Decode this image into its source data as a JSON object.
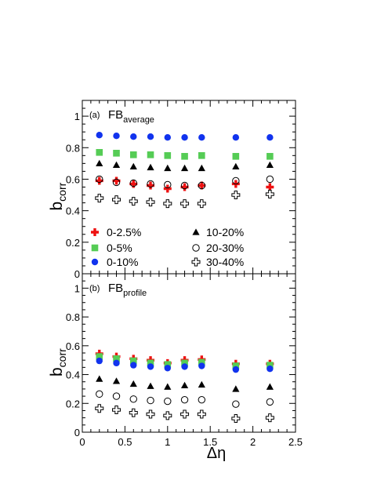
{
  "chart_data": [
    {
      "type": "scatter",
      "panel_label": "(a)",
      "title_main": "FB",
      "title_sub": "average",
      "ylabel_main": "b",
      "ylabel_sub": "corr",
      "xlim": [
        0,
        2.5
      ],
      "ylim": [
        0,
        1.1
      ],
      "yticks": [
        "0",
        "0.2",
        "0.4",
        "0.6",
        "0.8",
        "1"
      ],
      "grid": false,
      "legend_position": "bottom",
      "series": [
        {
          "name": "0-2.5%",
          "marker": "cross-filled",
          "color": "#ee1111",
          "x": [
            0.2,
            0.4,
            0.6,
            0.8,
            1.0,
            1.2,
            1.4,
            1.8,
            2.2
          ],
          "y": [
            0.59,
            0.59,
            0.57,
            0.56,
            0.54,
            0.55,
            0.56,
            0.57,
            0.55
          ]
        },
        {
          "name": "0-5%",
          "marker": "square",
          "color": "#55cc55",
          "x": [
            0.2,
            0.4,
            0.6,
            0.8,
            1.0,
            1.2,
            1.4,
            1.8,
            2.2
          ],
          "y": [
            0.77,
            0.765,
            0.755,
            0.755,
            0.75,
            0.745,
            0.75,
            0.745,
            0.745
          ]
        },
        {
          "name": "0-10%",
          "marker": "circle",
          "color": "#1133ee",
          "x": [
            0.2,
            0.4,
            0.6,
            0.8,
            1.0,
            1.2,
            1.4,
            1.8,
            2.2
          ],
          "y": [
            0.88,
            0.875,
            0.87,
            0.87,
            0.865,
            0.865,
            0.865,
            0.865,
            0.865
          ]
        },
        {
          "name": "10-20%",
          "marker": "triangle",
          "color": "#000000",
          "x": [
            0.2,
            0.4,
            0.6,
            0.8,
            1.0,
            1.2,
            1.4,
            1.8,
            2.2
          ],
          "y": [
            0.7,
            0.69,
            0.68,
            0.675,
            0.67,
            0.67,
            0.67,
            0.68,
            0.69
          ]
        },
        {
          "name": "20-30%",
          "marker": "circle-open",
          "color": "#000000",
          "x": [
            0.2,
            0.4,
            0.6,
            0.8,
            1.0,
            1.2,
            1.4,
            1.8,
            2.2
          ],
          "y": [
            0.6,
            0.58,
            0.575,
            0.57,
            0.565,
            0.56,
            0.56,
            0.59,
            0.6
          ]
        },
        {
          "name": "30-40%",
          "marker": "cross-open",
          "color": "#000000",
          "x": [
            0.2,
            0.4,
            0.6,
            0.8,
            1.0,
            1.2,
            1.4,
            1.8,
            2.2
          ],
          "y": [
            0.48,
            0.47,
            0.46,
            0.455,
            0.445,
            0.445,
            0.445,
            0.5,
            0.505
          ]
        }
      ]
    },
    {
      "type": "scatter",
      "panel_label": "(b)",
      "title_main": "FB",
      "title_sub": "profile",
      "ylabel_main": "b",
      "ylabel_sub": "corr",
      "xlabel": "Δη",
      "xlim": [
        0,
        2.5
      ],
      "xticks": [
        "0",
        "0.5",
        "1",
        "1.5",
        "2",
        "2.5"
      ],
      "ylim": [
        0,
        1.1
      ],
      "yticks": [
        "0",
        "0.2",
        "0.4",
        "0.6",
        "0.8",
        "1"
      ],
      "grid": false,
      "series": [
        {
          "name": "0-2.5%",
          "marker": "cross-filled",
          "color": "#ee1111",
          "x": [
            0.2,
            0.4,
            0.6,
            0.8,
            1.0,
            1.2,
            1.4,
            1.8,
            2.2
          ],
          "y": [
            0.545,
            0.525,
            0.51,
            0.5,
            0.48,
            0.5,
            0.505,
            0.475,
            0.475
          ]
        },
        {
          "name": "0-5%",
          "marker": "square",
          "color": "#55cc55",
          "x": [
            0.2,
            0.4,
            0.6,
            0.8,
            1.0,
            1.2,
            1.4,
            1.8,
            2.2
          ],
          "y": [
            0.525,
            0.51,
            0.495,
            0.48,
            0.47,
            0.48,
            0.485,
            0.46,
            0.465
          ]
        },
        {
          "name": "0-10%",
          "marker": "circle",
          "color": "#1133ee",
          "x": [
            0.2,
            0.4,
            0.6,
            0.8,
            1.0,
            1.2,
            1.4,
            1.8,
            2.2
          ],
          "y": [
            0.495,
            0.48,
            0.465,
            0.455,
            0.445,
            0.455,
            0.46,
            0.435,
            0.44
          ]
        },
        {
          "name": "10-20%",
          "marker": "triangle",
          "color": "#000000",
          "x": [
            0.2,
            0.4,
            0.6,
            0.8,
            1.0,
            1.2,
            1.4,
            1.8,
            2.2
          ],
          "y": [
            0.37,
            0.355,
            0.335,
            0.32,
            0.315,
            0.325,
            0.33,
            0.3,
            0.315
          ]
        },
        {
          "name": "20-30%",
          "marker": "circle-open",
          "color": "#000000",
          "x": [
            0.2,
            0.4,
            0.6,
            0.8,
            1.0,
            1.2,
            1.4,
            1.8,
            2.2
          ],
          "y": [
            0.265,
            0.25,
            0.23,
            0.22,
            0.215,
            0.225,
            0.225,
            0.195,
            0.21
          ]
        },
        {
          "name": "30-40%",
          "marker": "cross-open",
          "color": "#000000",
          "x": [
            0.2,
            0.4,
            0.6,
            0.8,
            1.0,
            1.2,
            1.4,
            1.8,
            2.2
          ],
          "y": [
            0.165,
            0.155,
            0.135,
            0.125,
            0.115,
            0.125,
            0.125,
            0.095,
            0.1
          ]
        }
      ]
    }
  ]
}
